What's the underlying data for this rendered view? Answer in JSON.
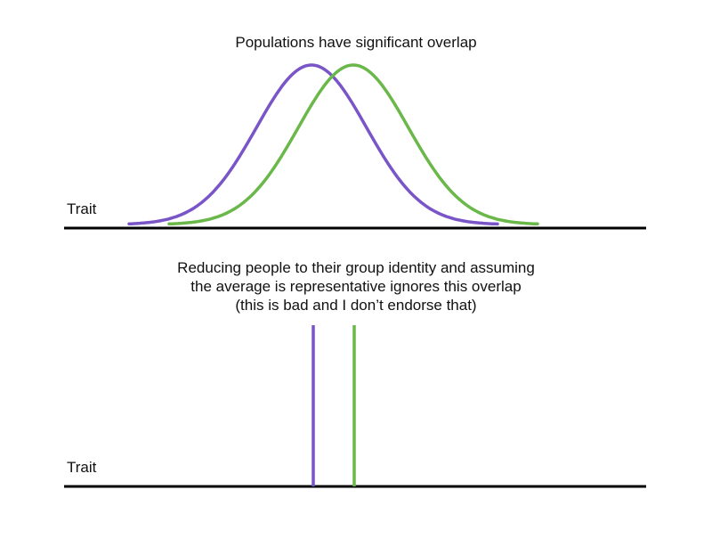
{
  "title": "Populations have significant overlap",
  "caption": [
    "Reducing people to their group identity and assuming",
    "the average is representative ignores this overlap",
    "(this is bad and I don’t endorse that)"
  ],
  "axis_label_top": "Trait",
  "axis_label_bottom": "Trait",
  "colors": {
    "purple": "#7a55c8",
    "green": "#6ab84a",
    "axis": "#000000"
  }
}
